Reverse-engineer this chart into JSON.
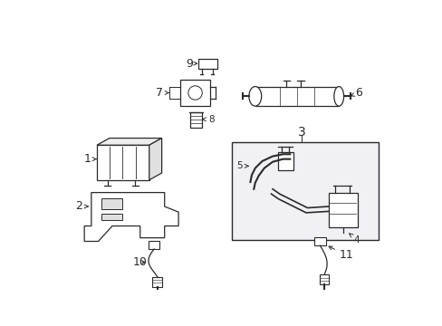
{
  "background_color": "#ffffff",
  "line_color": "#2a2a2a",
  "box_fill": "#f5f5f5",
  "fig_width": 4.89,
  "fig_height": 3.6,
  "dpi": 100,
  "label_fontsize": 7.5,
  "label_fontsize_large": 9.0
}
